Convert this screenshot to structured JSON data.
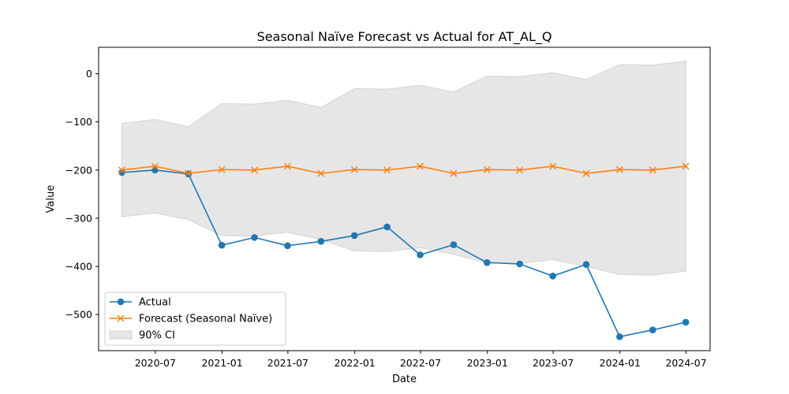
{
  "chart_data": {
    "type": "line",
    "title": "Seasonal Naïve Forecast vs Actual for AT_AL_Q",
    "xlabel": "Date",
    "ylabel": "Value",
    "x": [
      "2020-03-31",
      "2020-06-30",
      "2020-09-30",
      "2020-12-31",
      "2021-03-31",
      "2021-06-30",
      "2021-09-30",
      "2021-12-31",
      "2022-03-31",
      "2022-06-30",
      "2022-09-30",
      "2022-12-31",
      "2023-03-31",
      "2023-06-30",
      "2023-09-30",
      "2023-12-31",
      "2024-03-31",
      "2024-06-30"
    ],
    "x_ticks": [
      "2020-07",
      "2021-01",
      "2021-07",
      "2022-01",
      "2022-07",
      "2023-01",
      "2023-07",
      "2024-01",
      "2024-07"
    ],
    "y_ticks": [
      0,
      -100,
      -200,
      -300,
      -400,
      -500
    ],
    "y_tick_labels": [
      "0",
      "−100",
      "−200",
      "−300",
      "−400",
      "−500"
    ],
    "ylim": [
      -575,
      55
    ],
    "xlim": [
      "2020-01-27",
      "2024-09-05"
    ],
    "grid": false,
    "legend_position": "lower-left",
    "series": [
      {
        "name": "Actual",
        "color": "#1f77b4",
        "marker": "circle",
        "values": [
          -205,
          -200,
          -208,
          -356,
          -340,
          -357,
          -348,
          -336,
          -318,
          -376,
          -355,
          -392,
          -395,
          -420,
          -396,
          -546,
          -532,
          -516
        ]
      },
      {
        "name": "Forecast (Seasonal Naïve)",
        "color": "#ff7f0e",
        "marker": "x",
        "values": [
          -200,
          -192,
          -207,
          -199,
          -200,
          -192,
          -207,
          -199,
          -200,
          -192,
          -207,
          -199,
          -200,
          -192,
          -207,
          -199,
          -200,
          -192
        ]
      }
    ],
    "interval": {
      "name": "90% CI",
      "color": "#e6e6e6",
      "edge_color": "#d3d3d3",
      "upper": [
        -103,
        -95,
        -110,
        -62,
        -63,
        -55,
        -70,
        -31,
        -32,
        -24,
        -38,
        -5,
        -6,
        2,
        -12,
        19,
        18,
        26
      ],
      "lower": [
        -297,
        -289,
        -303,
        -336,
        -337,
        -329,
        -344,
        -368,
        -369,
        -361,
        -375,
        -393,
        -394,
        -386,
        -400,
        -417,
        -418,
        -410
      ]
    }
  }
}
